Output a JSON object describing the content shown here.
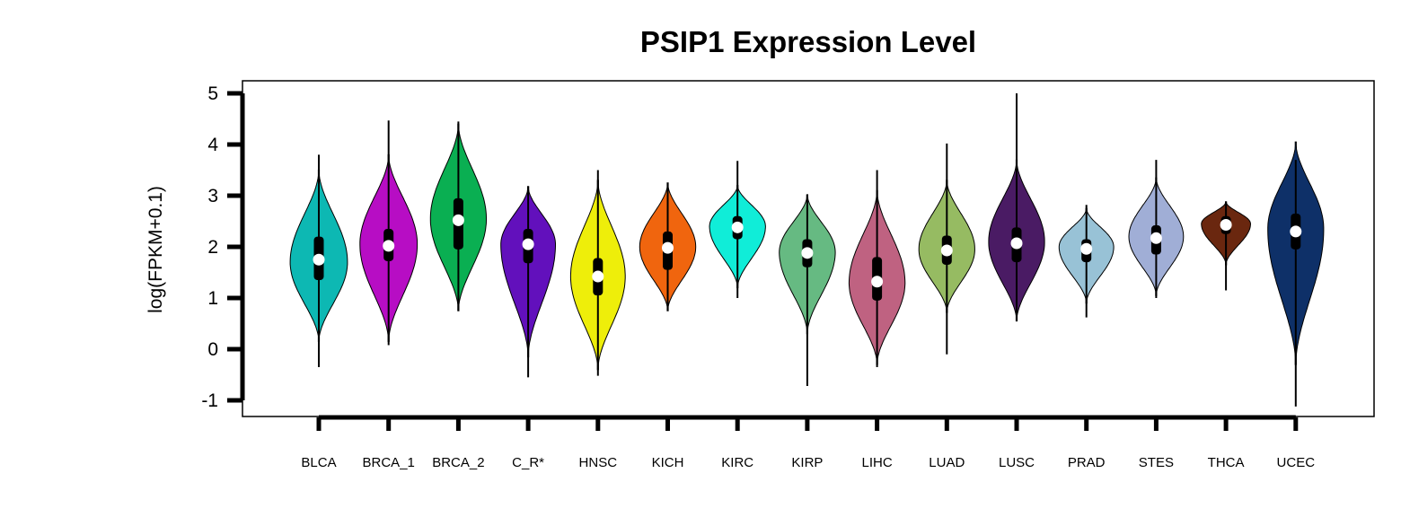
{
  "chart_data": {
    "type": "violin",
    "title": "PSIP1 Expression Level",
    "xlabel": "",
    "ylabel": "log(FPKM+0.1)",
    "ylim": [
      -1,
      5
    ],
    "yticks": [
      "-1",
      "0",
      "1",
      "2",
      "3",
      "4",
      "5"
    ],
    "grid": false,
    "legend": "none",
    "series": [
      {
        "category": "BLCA",
        "color": "#0DB8B3",
        "min": -0.35,
        "max": 3.8,
        "q1": 1.35,
        "median": 1.75,
        "q3": 2.2,
        "whisker_low": -0.35,
        "whisker_high": 3.8,
        "mode": 1.7,
        "violin_low": 0.15,
        "violin_high": 3.5,
        "width": 0.84
      },
      {
        "category": "BRCA_1",
        "color": "#B70DC4",
        "min": 0.08,
        "max": 4.47,
        "q1": 1.72,
        "median": 2.02,
        "q3": 2.35,
        "whisker_low": 0.08,
        "whisker_high": 4.47,
        "mode": 2.05,
        "violin_low": 0.15,
        "violin_high": 3.8,
        "width": 0.84
      },
      {
        "category": "BRCA_2",
        "color": "#0AAF52",
        "min": 0.75,
        "max": 4.45,
        "q1": 1.95,
        "median": 2.52,
        "q3": 2.95,
        "whisker_low": 0.75,
        "whisker_high": 4.45,
        "mode": 2.55,
        "violin_low": 0.75,
        "violin_high": 4.4,
        "width": 0.82
      },
      {
        "category": "C_R*",
        "color": "#6210BC",
        "min": -0.55,
        "max": 3.18,
        "q1": 1.68,
        "median": 2.05,
        "q3": 2.35,
        "whisker_low": -0.55,
        "whisker_high": 3.18,
        "mode": 2.05,
        "violin_low": -0.15,
        "violin_high": 3.18,
        "width": 0.8
      },
      {
        "category": "HNSC",
        "color": "#EEEE0A",
        "min": -0.52,
        "max": 3.5,
        "q1": 1.05,
        "median": 1.42,
        "q3": 1.78,
        "whisker_low": -0.52,
        "whisker_high": 3.5,
        "mode": 1.42,
        "violin_low": -0.4,
        "violin_high": 3.3,
        "width": 0.8
      },
      {
        "category": "KICH",
        "color": "#F0650E",
        "min": 0.75,
        "max": 3.25,
        "q1": 1.55,
        "median": 1.98,
        "q3": 2.3,
        "whisker_low": 0.75,
        "whisker_high": 3.25,
        "mode": 2.0,
        "violin_low": 0.75,
        "violin_high": 3.25,
        "width": 0.82
      },
      {
        "category": "KIRC",
        "color": "#10EDD8",
        "min": 1.0,
        "max": 3.68,
        "q1": 2.15,
        "median": 2.38,
        "q3": 2.6,
        "whisker_low": 1.0,
        "whisker_high": 3.68,
        "mode": 2.4,
        "violin_low": 1.2,
        "violin_high": 3.2,
        "width": 0.82
      },
      {
        "category": "KIRP",
        "color": "#66BA82",
        "min": -0.72,
        "max": 3.02,
        "q1": 1.6,
        "median": 1.88,
        "q3": 2.15,
        "whisker_low": -0.72,
        "whisker_high": 3.02,
        "mode": 1.9,
        "violin_low": 0.3,
        "violin_high": 3.02,
        "width": 0.82
      },
      {
        "category": "LIHC",
        "color": "#BF6281",
        "min": -0.35,
        "max": 3.5,
        "q1": 0.95,
        "median": 1.32,
        "q3": 1.8,
        "whisker_low": -0.35,
        "whisker_high": 3.5,
        "mode": 1.3,
        "violin_low": -0.3,
        "violin_high": 3.1,
        "width": 0.82
      },
      {
        "category": "LUAD",
        "color": "#96BB62",
        "min": -0.1,
        "max": 4.02,
        "q1": 1.65,
        "median": 1.93,
        "q3": 2.22,
        "whisker_low": -0.1,
        "whisker_high": 4.02,
        "mode": 1.95,
        "violin_low": 0.72,
        "violin_high": 3.3,
        "width": 0.82
      },
      {
        "category": "LUSC",
        "color": "#4A1B64",
        "min": 0.55,
        "max": 5.0,
        "q1": 1.7,
        "median": 2.07,
        "q3": 2.38,
        "whisker_low": 0.55,
        "whisker_high": 5.0,
        "mode": 2.1,
        "violin_low": 0.55,
        "violin_high": 3.7,
        "width": 0.82
      },
      {
        "category": "PRAD",
        "color": "#98C2D6",
        "min": 0.62,
        "max": 2.82,
        "q1": 1.7,
        "median": 1.96,
        "q3": 2.15,
        "whisker_low": 0.62,
        "whisker_high": 2.82,
        "mode": 2.0,
        "violin_low": 0.9,
        "violin_high": 2.75,
        "width": 0.8
      },
      {
        "category": "STES",
        "color": "#A0AED6",
        "min": 1.0,
        "max": 3.7,
        "q1": 1.85,
        "median": 2.17,
        "q3": 2.42,
        "whisker_low": 1.0,
        "whisker_high": 3.7,
        "mode": 2.2,
        "violin_low": 1.05,
        "violin_high": 3.35,
        "width": 0.8
      },
      {
        "category": "THCA",
        "color": "#6A270F",
        "min": 1.15,
        "max": 2.88,
        "q1": 2.25,
        "median": 2.43,
        "q3": 2.6,
        "whisker_low": 1.15,
        "whisker_high": 2.88,
        "mode": 2.45,
        "violin_low": 1.65,
        "violin_high": 2.88,
        "width": 0.72
      },
      {
        "category": "UCEC",
        "color": "#0E3068",
        "min": -1.12,
        "max": 3.7,
        "q1": 1.95,
        "median": 2.3,
        "q3": 2.65,
        "whisker_low": -1.12,
        "whisker_high": 3.7,
        "mode": 2.35,
        "violin_low": -0.3,
        "violin_high": 4.05,
        "width": 0.82
      }
    ]
  }
}
